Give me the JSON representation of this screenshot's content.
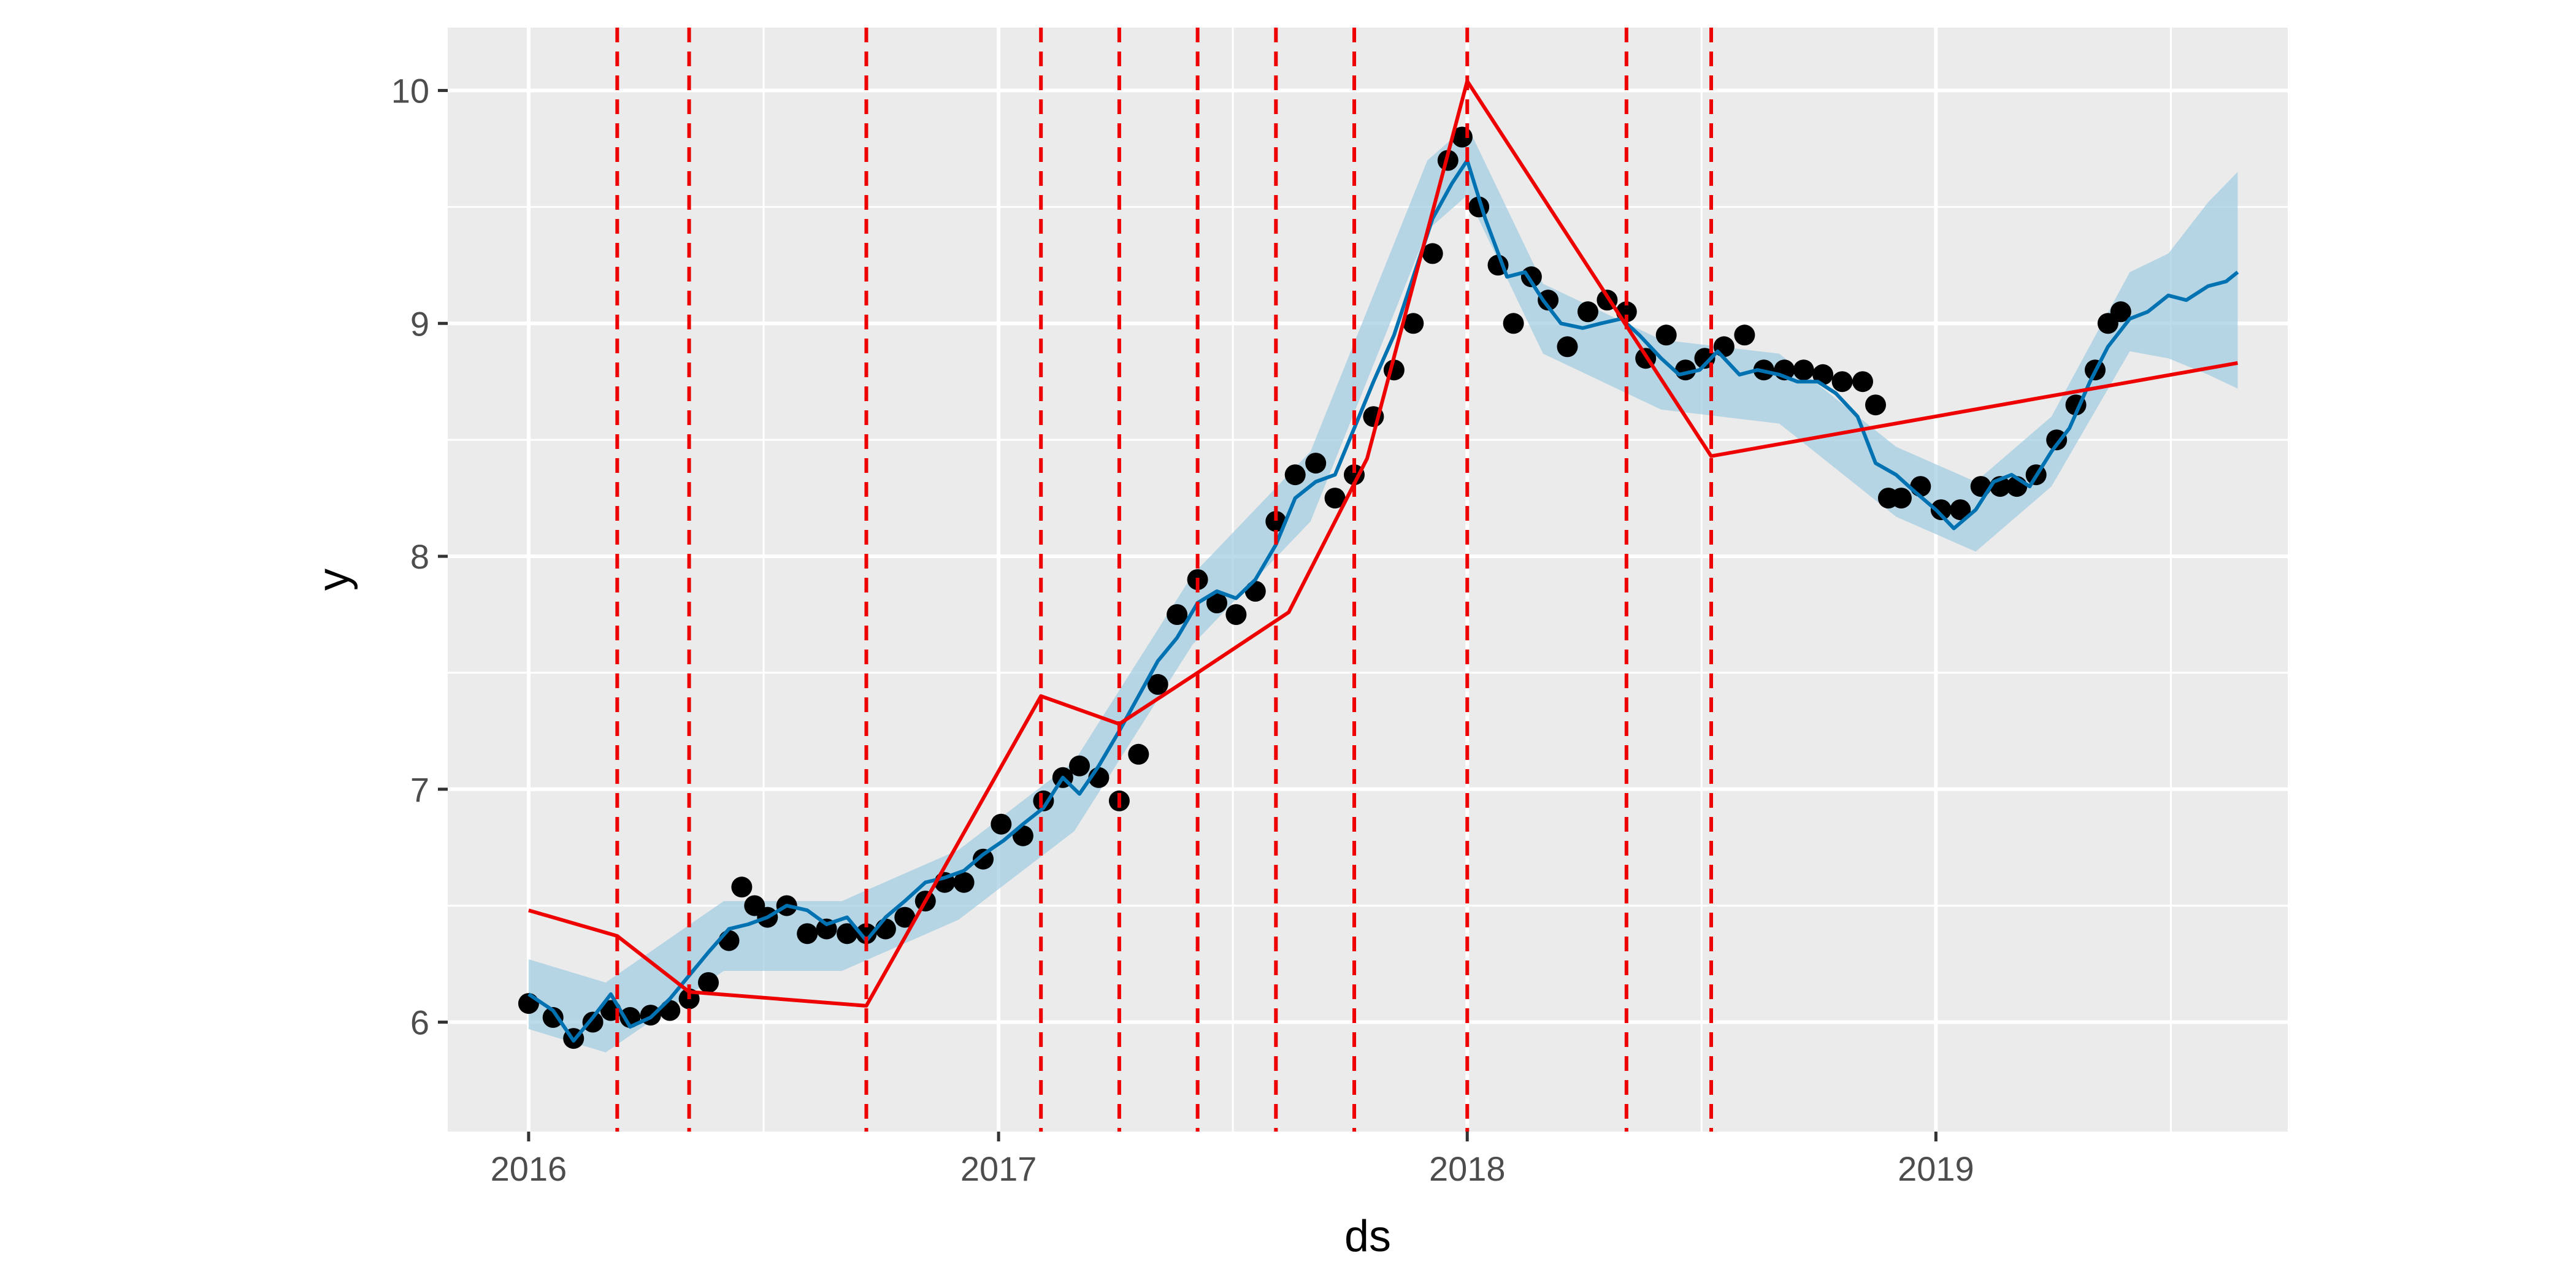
{
  "chart_data": {
    "type": "line",
    "title": "",
    "xlabel": "ds",
    "ylabel": "y",
    "x_is_date": true,
    "xlim": [
      "2015-10-30",
      "2019-10-02"
    ],
    "ylim": [
      5.53,
      10.27
    ],
    "x_ticks": [
      {
        "date": "2016-01-01",
        "label": "2016"
      },
      {
        "date": "2017-01-01",
        "label": "2017"
      },
      {
        "date": "2018-01-01",
        "label": "2018"
      },
      {
        "date": "2019-01-01",
        "label": "2019"
      }
    ],
    "y_ticks": [
      6,
      7,
      8,
      9,
      10
    ],
    "grid": true,
    "legend": "none",
    "colors": {
      "panel_background": "#ebebeb",
      "grid": "#ffffff",
      "points": "#000000",
      "forecast_line": "#0072b2",
      "uncertainty_band": "#9ecae1",
      "trend_line": "#ee0000",
      "changepoints": "#ee0000"
    },
    "series": [
      {
        "role": "observed points (y)",
        "x": [
          "2016-01-01",
          "2016-01-20",
          "2016-02-05",
          "2016-02-20",
          "2016-03-05",
          "2016-03-20",
          "2016-04-05",
          "2016-04-20",
          "2016-05-05",
          "2016-05-20",
          "2016-06-05",
          "2016-06-15",
          "2016-06-25",
          "2016-07-05",
          "2016-07-20",
          "2016-08-05",
          "2016-08-20",
          "2016-09-05",
          "2016-09-20",
          "2016-10-05",
          "2016-10-20",
          "2016-11-05",
          "2016-11-20",
          "2016-12-05",
          "2016-12-20",
          "2017-01-03",
          "2017-01-20",
          "2017-02-05",
          "2017-02-20",
          "2017-03-05",
          "2017-03-20",
          "2017-04-05",
          "2017-04-20",
          "2017-05-05",
          "2017-05-20",
          "2017-06-05",
          "2017-06-20",
          "2017-07-05",
          "2017-07-20",
          "2017-08-05",
          "2017-08-20",
          "2017-09-05",
          "2017-09-20",
          "2017-10-05",
          "2017-10-20",
          "2017-11-05",
          "2017-11-20",
          "2017-12-05",
          "2017-12-17",
          "2017-12-28",
          "2018-01-10",
          "2018-01-25",
          "2018-02-06",
          "2018-02-20",
          "2018-03-05",
          "2018-03-20",
          "2018-04-05",
          "2018-04-20",
          "2018-05-05",
          "2018-05-20",
          "2018-06-05",
          "2018-06-20",
          "2018-07-05",
          "2018-07-20",
          "2018-08-05",
          "2018-08-20",
          "2018-09-05",
          "2018-09-20",
          "2018-10-05",
          "2018-10-20",
          "2018-11-05",
          "2018-11-15",
          "2018-11-25",
          "2018-12-05",
          "2018-12-20",
          "2019-01-05",
          "2019-01-20",
          "2019-02-05",
          "2019-02-20",
          "2019-03-05",
          "2019-03-20",
          "2019-04-05",
          "2019-04-20",
          "2019-05-05",
          "2019-05-15",
          "2019-05-25"
        ],
        "y": [
          6.08,
          6.02,
          5.93,
          6.0,
          6.05,
          6.02,
          6.03,
          6.05,
          6.1,
          6.17,
          6.35,
          6.58,
          6.5,
          6.45,
          6.5,
          6.38,
          6.4,
          6.38,
          6.38,
          6.4,
          6.45,
          6.52,
          6.6,
          6.6,
          6.7,
          6.85,
          6.8,
          6.95,
          7.05,
          7.1,
          7.05,
          6.95,
          7.15,
          7.45,
          7.75,
          7.9,
          7.8,
          7.75,
          7.85,
          8.15,
          8.35,
          8.4,
          8.25,
          8.35,
          8.6,
          8.8,
          9.0,
          9.3,
          9.7,
          9.8,
          9.5,
          9.25,
          9.0,
          9.2,
          9.1,
          8.9,
          9.05,
          9.1,
          9.05,
          8.85,
          8.95,
          8.8,
          8.85,
          8.9,
          8.95,
          8.8,
          8.8,
          8.8,
          8.78,
          8.75,
          8.75,
          8.65,
          8.25,
          8.25,
          8.3,
          8.2,
          8.2,
          8.3,
          8.3,
          8.3,
          8.35,
          8.5,
          8.65,
          8.8,
          9.0,
          9.05
        ]
      },
      {
        "role": "forecast yhat",
        "x": [
          "2016-01-01",
          "2016-01-20",
          "2016-02-05",
          "2016-02-20",
          "2016-03-05",
          "2016-03-20",
          "2016-04-05",
          "2016-04-20",
          "2016-05-05",
          "2016-05-20",
          "2016-06-05",
          "2016-06-20",
          "2016-07-05",
          "2016-07-20",
          "2016-08-05",
          "2016-08-20",
          "2016-09-05",
          "2016-09-20",
          "2016-10-05",
          "2016-10-20",
          "2016-11-05",
          "2016-11-20",
          "2016-12-05",
          "2016-12-20",
          "2017-01-05",
          "2017-01-20",
          "2017-02-05",
          "2017-02-20",
          "2017-03-05",
          "2017-03-20",
          "2017-04-05",
          "2017-04-20",
          "2017-05-05",
          "2017-05-20",
          "2017-06-05",
          "2017-06-20",
          "2017-07-05",
          "2017-07-20",
          "2017-08-05",
          "2017-08-20",
          "2017-09-05",
          "2017-09-20",
          "2017-10-05",
          "2017-10-20",
          "2017-11-05",
          "2017-11-20",
          "2017-12-05",
          "2017-12-20",
          "2018-01-01",
          "2018-01-15",
          "2018-02-01",
          "2018-02-15",
          "2018-03-01",
          "2018-03-15",
          "2018-04-01",
          "2018-04-15",
          "2018-05-01",
          "2018-05-15",
          "2018-06-01",
          "2018-06-15",
          "2018-07-01",
          "2018-07-15",
          "2018-08-01",
          "2018-08-15",
          "2018-09-01",
          "2018-09-15",
          "2018-10-01",
          "2018-10-15",
          "2018-11-01",
          "2018-11-15",
          "2018-12-01",
          "2018-12-15",
          "2019-01-01",
          "2019-01-15",
          "2019-02-01",
          "2019-02-15",
          "2019-03-01",
          "2019-03-15",
          "2019-04-01",
          "2019-04-15",
          "2019-05-01",
          "2019-05-15",
          "2019-06-01",
          "2019-06-15",
          "2019-07-01",
          "2019-07-15",
          "2019-08-01",
          "2019-08-15",
          "2019-08-24"
        ],
        "y": [
          6.12,
          6.05,
          5.92,
          6.02,
          6.12,
          5.98,
          6.02,
          6.1,
          6.2,
          6.3,
          6.4,
          6.42,
          6.45,
          6.5,
          6.48,
          6.42,
          6.45,
          6.35,
          6.45,
          6.52,
          6.6,
          6.62,
          6.65,
          6.72,
          6.78,
          6.85,
          6.92,
          7.05,
          6.98,
          7.1,
          7.25,
          7.4,
          7.55,
          7.65,
          7.8,
          7.85,
          7.82,
          7.9,
          8.05,
          8.25,
          8.32,
          8.35,
          8.55,
          8.75,
          8.95,
          9.2,
          9.45,
          9.6,
          9.7,
          9.45,
          9.2,
          9.22,
          9.1,
          9.0,
          8.98,
          9.0,
          9.02,
          8.95,
          8.85,
          8.78,
          8.8,
          8.88,
          8.78,
          8.8,
          8.78,
          8.75,
          8.75,
          8.7,
          8.6,
          8.4,
          8.35,
          8.28,
          8.2,
          8.12,
          8.2,
          8.32,
          8.35,
          8.3,
          8.45,
          8.55,
          8.75,
          8.9,
          9.02,
          9.05,
          9.12,
          9.1,
          9.16,
          9.18,
          9.22
        ]
      },
      {
        "role": "uncertainty band",
        "x": [
          "2016-01-01",
          "2016-03-01",
          "2016-06-01",
          "2016-09-01",
          "2016-12-01",
          "2017-03-01",
          "2017-06-01",
          "2017-09-01",
          "2017-12-01",
          "2018-01-01",
          "2018-03-01",
          "2018-06-01",
          "2018-09-01",
          "2018-12-01",
          "2019-02-01",
          "2019-04-01",
          "2019-06-01",
          "2019-07-01",
          "2019-08-01",
          "2019-08-24"
        ],
        "upper": [
          6.27,
          6.17,
          6.52,
          6.52,
          6.74,
          7.12,
          7.92,
          8.45,
          9.7,
          9.85,
          9.17,
          8.93,
          8.87,
          8.47,
          8.32,
          8.6,
          9.22,
          9.3,
          9.52,
          9.65
        ],
        "lower": [
          5.97,
          5.87,
          6.22,
          6.22,
          6.44,
          6.82,
          7.62,
          8.15,
          9.4,
          9.55,
          8.87,
          8.63,
          8.57,
          8.17,
          8.02,
          8.3,
          8.88,
          8.85,
          8.78,
          8.72
        ]
      },
      {
        "role": "trend",
        "x": [
          "2016-01-01",
          "2016-03-10",
          "2016-05-05",
          "2016-09-20",
          "2017-02-03",
          "2017-04-05",
          "2017-06-05",
          "2017-08-15",
          "2017-10-15",
          "2018-01-01",
          "2018-07-10",
          "2019-08-24"
        ],
        "y": [
          6.48,
          6.37,
          6.13,
          6.07,
          7.4,
          7.28,
          7.5,
          7.76,
          8.42,
          10.04,
          8.43,
          8.83
        ]
      }
    ],
    "changepoints": [
      "2016-03-10",
      "2016-05-05",
      "2016-09-20",
      "2017-02-03",
      "2017-04-05",
      "2017-06-05",
      "2017-08-05",
      "2017-10-05",
      "2018-01-01",
      "2018-05-05",
      "2018-07-10"
    ]
  }
}
